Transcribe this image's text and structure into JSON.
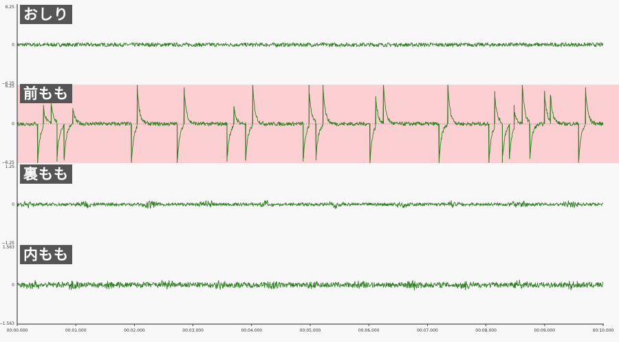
{
  "chart_data": {
    "type": "line",
    "x_tick_labels": [
      "00:00.000",
      "00:01.000",
      "00:02.000",
      "00:03.000",
      "00:04.000",
      "00:05.000",
      "00:06.000",
      "00:07.000",
      "00:08.000",
      "00:09.000",
      "00:10.000"
    ],
    "xlim": [
      0,
      10
    ],
    "colors": {
      "signal": "#2e7d22",
      "highlight": "#fcd0d2",
      "baseline": "#555555",
      "label_bg": "#555555"
    },
    "panels": [
      {
        "title": "おしり",
        "ylim": [
          -6.25,
          6.25
        ],
        "y_tick_labels": [
          "6.25",
          "0",
          "−6.25"
        ],
        "highlight": false,
        "kind": "flat",
        "amplitude": 0.05,
        "spikes": []
      },
      {
        "title": "前もも",
        "ylim": [
          -6.25,
          6.25
        ],
        "y_tick_labels": [
          "6.25",
          "0",
          "−6.25"
        ],
        "highlight": true,
        "kind": "spikes",
        "amplitude": 0.05,
        "spikes": [
          {
            "t": 0.35,
            "v": -6.2
          },
          {
            "t": 0.45,
            "v": 3.0
          },
          {
            "t": 0.58,
            "v": 3.5
          },
          {
            "t": 0.68,
            "v": -6.0
          },
          {
            "t": 0.8,
            "v": -5.5
          },
          {
            "t": 0.95,
            "v": 2.5
          },
          {
            "t": 1.95,
            "v": -6.2
          },
          {
            "t": 2.05,
            "v": 6.2
          },
          {
            "t": 2.73,
            "v": -6.2
          },
          {
            "t": 2.85,
            "v": 5.8
          },
          {
            "t": 3.58,
            "v": -6.0
          },
          {
            "t": 3.7,
            "v": 2.8
          },
          {
            "t": 3.9,
            "v": -5.8
          },
          {
            "t": 4.02,
            "v": 6.2
          },
          {
            "t": 4.88,
            "v": -6.0
          },
          {
            "t": 4.98,
            "v": 6.2
          },
          {
            "t": 5.1,
            "v": -5.8
          },
          {
            "t": 5.22,
            "v": 6.2
          },
          {
            "t": 6.02,
            "v": -6.2
          },
          {
            "t": 6.12,
            "v": 4.4
          },
          {
            "t": 6.25,
            "v": 6.2
          },
          {
            "t": 7.2,
            "v": -6.2
          },
          {
            "t": 7.35,
            "v": 6.2
          },
          {
            "t": 8.05,
            "v": -6.2
          },
          {
            "t": 8.15,
            "v": 5.2
          },
          {
            "t": 8.28,
            "v": -6.2
          },
          {
            "t": 8.4,
            "v": -5.5
          },
          {
            "t": 8.48,
            "v": 3.0
          },
          {
            "t": 8.62,
            "v": 6.2
          },
          {
            "t": 8.75,
            "v": -5.6
          },
          {
            "t": 9.0,
            "v": 5.0
          },
          {
            "t": 9.1,
            "v": 4.5
          },
          {
            "t": 9.58,
            "v": -6.2
          },
          {
            "t": 9.7,
            "v": 5.8
          }
        ]
      },
      {
        "title": "裏もも",
        "ylim": [
          -1.25,
          1.25
        ],
        "y_tick_labels": [
          "1.25",
          "0",
          "−1.25"
        ],
        "highlight": false,
        "kind": "noise",
        "amplitude": 0.04,
        "bursts": [
          0.0,
          1.0,
          2.1,
          3.1,
          4.1,
          5.3,
          6.4,
          7.3,
          8.4,
          9.3
        ]
      },
      {
        "title": "内もも",
        "ylim": [
          -1.563,
          1.563
        ],
        "y_tick_labels": [
          "1.563",
          "0",
          "−1.563"
        ],
        "highlight": false,
        "kind": "noise",
        "amplitude": 0.07,
        "bursts": [
          0.1,
          0.8,
          1.4,
          2.4,
          3.3,
          4.2,
          4.9,
          5.7,
          6.6,
          7.5,
          8.4,
          9.3
        ]
      }
    ]
  }
}
